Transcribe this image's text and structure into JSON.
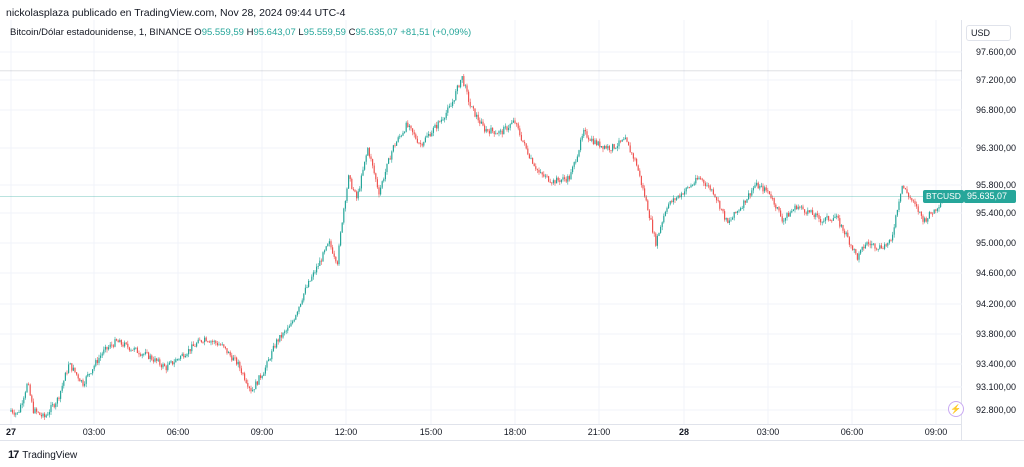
{
  "header": {
    "text": "nickolasplaza publicado en TradingView.com, Nov 28, 2024 09:44 UTC-4"
  },
  "legend": {
    "symbol": "Bitcoin/Dólar estadounidense, 1, BINANCE",
    "o_key": "O",
    "o_val": "95.559,59",
    "h_key": "H",
    "h_val": "95.643,07",
    "l_key": "L",
    "l_val": "95.559,59",
    "c_key": "C",
    "c_val": "95.635,07",
    "change": "+81,51 (+0,09%)"
  },
  "price_scale": {
    "currency": "USD",
    "ticks": [
      "97.600,00",
      "97.200,00",
      "96.800,00",
      "96.300,00",
      "95.800,00",
      "95.400,00",
      "95.000,00",
      "94.600,00",
      "94.200,00",
      "93.800,00",
      "93.400,00",
      "93.100,00",
      "92.800,00"
    ],
    "last_price": "95.635,07",
    "symbol_label": "BTCUSD"
  },
  "time_scale": {
    "ticks": [
      "27",
      "03:00",
      "06:00",
      "09:00",
      "12:00",
      "15:00",
      "18:00",
      "21:00",
      "28",
      "03:00",
      "06:00",
      "09:00"
    ]
  },
  "brand": {
    "name": "TradingView",
    "mark": "17"
  },
  "colors": {
    "up": "#26a69a",
    "down": "#ef5350",
    "grid": "#f0f3fa"
  },
  "icons": {
    "alert": "lightning-icon"
  },
  "chart_data": {
    "type": "candlestick",
    "symbol": "BTCUSD",
    "interval": "1",
    "x_range": [
      "27 00:00",
      "28 09:44"
    ],
    "y_ticks": [
      97600,
      97200,
      96800,
      96300,
      95800,
      95400,
      95000,
      94600,
      94200,
      93800,
      93400,
      93100,
      92800
    ],
    "ylim": [
      92700,
      97750
    ],
    "path_points": [
      [
        0,
        92800
      ],
      [
        0.25,
        92750
      ],
      [
        0.6,
        93150
      ],
      [
        0.8,
        92800
      ],
      [
        1.2,
        92700
      ],
      [
        1.7,
        92950
      ],
      [
        2.1,
        93400
      ],
      [
        2.6,
        93150
      ],
      [
        3.3,
        93550
      ],
      [
        3.8,
        93700
      ],
      [
        4.4,
        93600
      ],
      [
        5.0,
        93500
      ],
      [
        5.6,
        93350
      ],
      [
        6.3,
        93550
      ],
      [
        7.0,
        93750
      ],
      [
        7.6,
        93650
      ],
      [
        8.2,
        93400
      ],
      [
        8.7,
        93050
      ],
      [
        9.2,
        93350
      ],
      [
        9.6,
        93700
      ],
      [
        10.1,
        93900
      ],
      [
        10.6,
        94350
      ],
      [
        11.1,
        94700
      ],
      [
        11.5,
        95000
      ],
      [
        11.8,
        94750
      ],
      [
        12.0,
        95400
      ],
      [
        12.2,
        95900
      ],
      [
        12.5,
        95600
      ],
      [
        12.9,
        96300
      ],
      [
        13.3,
        95700
      ],
      [
        13.8,
        96300
      ],
      [
        14.3,
        96600
      ],
      [
        14.8,
        96350
      ],
      [
        15.4,
        96600
      ],
      [
        15.9,
        96850
      ],
      [
        16.3,
        97250
      ],
      [
        16.6,
        96850
      ],
      [
        17.1,
        96550
      ],
      [
        17.7,
        96500
      ],
      [
        18.2,
        96650
      ],
      [
        18.6,
        96300
      ],
      [
        19.1,
        95950
      ],
      [
        19.6,
        95850
      ],
      [
        20.2,
        95900
      ],
      [
        20.7,
        96500
      ],
      [
        21.2,
        96350
      ],
      [
        21.7,
        96300
      ],
      [
        22.2,
        96400
      ],
      [
        22.6,
        96100
      ],
      [
        23.0,
        95500
      ],
      [
        23.3,
        95000
      ],
      [
        23.7,
        95500
      ],
      [
        24.3,
        95700
      ],
      [
        24.9,
        95900
      ],
      [
        25.4,
        95700
      ],
      [
        25.9,
        95250
      ],
      [
        26.4,
        95500
      ],
      [
        26.9,
        95800
      ],
      [
        27.4,
        95700
      ],
      [
        27.9,
        95300
      ],
      [
        28.4,
        95500
      ],
      [
        28.9,
        95400
      ],
      [
        29.3,
        95300
      ],
      [
        29.8,
        95350
      ],
      [
        30.2,
        95100
      ],
      [
        30.6,
        94800
      ],
      [
        30.9,
        95000
      ],
      [
        31.4,
        94950
      ],
      [
        31.8,
        95000
      ],
      [
        32.2,
        95800
      ],
      [
        32.6,
        95550
      ],
      [
        33.0,
        95300
      ],
      [
        33.4,
        95450
      ],
      [
        33.74,
        95635
      ]
    ]
  }
}
